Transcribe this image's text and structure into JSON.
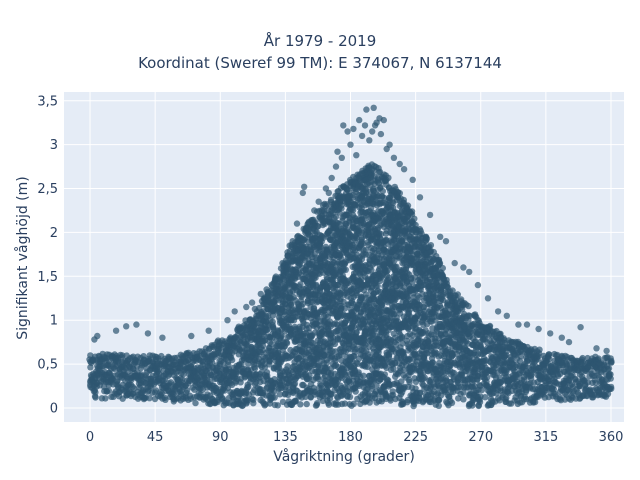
{
  "chart_data": {
    "type": "scatter",
    "title_line1": "År 1979 - 2019",
    "title_line2": "Koordinat (Sweref 99 TM): E 374067, N 6137144",
    "xlabel": "Vågriktning (grader)",
    "ylabel": "Signifikant våghöjd (m)",
    "xlim": [
      -18,
      369
    ],
    "ylim": [
      -0.16,
      3.6
    ],
    "xticks": [
      0,
      45,
      90,
      135,
      180,
      225,
      270,
      315,
      360
    ],
    "xtick_labels": [
      "0",
      "45",
      "90",
      "135",
      "180",
      "225",
      "270",
      "315",
      "360"
    ],
    "yticks": [
      0,
      0.5,
      1,
      1.5,
      2,
      2.5,
      3,
      3.5
    ],
    "ytick_labels": [
      "0",
      "0,5",
      "1",
      "1,5",
      "2",
      "2,5",
      "3",
      "3,5"
    ],
    "grid": true,
    "legend": "none",
    "marker_color": "#2e5670",
    "plot_background": "#e5ecf6",
    "envelope": {
      "x": [
        0,
        10,
        30,
        45,
        60,
        75,
        90,
        105,
        120,
        130,
        140,
        150,
        160,
        170,
        180,
        190,
        195,
        200,
        210,
        220,
        230,
        240,
        250,
        260,
        270,
        280,
        290,
        300,
        315,
        330,
        345,
        360
      ],
      "upper": [
        0.6,
        0.62,
        0.6,
        0.6,
        0.62,
        0.66,
        0.78,
        0.95,
        1.25,
        1.55,
        1.9,
        2.1,
        2.3,
        2.45,
        2.6,
        2.75,
        2.8,
        2.75,
        2.55,
        2.3,
        2.0,
        1.75,
        1.4,
        1.2,
        1.0,
        0.9,
        0.8,
        0.72,
        0.65,
        0.6,
        0.58,
        0.6
      ],
      "lower": [
        0.12,
        0.1,
        0.1,
        0.09,
        0.07,
        0.05,
        0.03,
        0.02,
        0.02,
        0.02,
        0.02,
        0.02,
        0.02,
        0.02,
        0.02,
        0.02,
        0.02,
        0.02,
        0.02,
        0.02,
        0.02,
        0.02,
        0.02,
        0.02,
        0.02,
        0.03,
        0.04,
        0.05,
        0.07,
        0.08,
        0.1,
        0.12
      ]
    },
    "outliers": [
      [
        3,
        0.78
      ],
      [
        5,
        0.82
      ],
      [
        18,
        0.88
      ],
      [
        25,
        0.93
      ],
      [
        32,
        0.95
      ],
      [
        40,
        0.85
      ],
      [
        50,
        0.8
      ],
      [
        70,
        0.82
      ],
      [
        82,
        0.88
      ],
      [
        95,
        1.0
      ],
      [
        100,
        1.1
      ],
      [
        108,
        1.15
      ],
      [
        112,
        1.2
      ],
      [
        118,
        1.3
      ],
      [
        122,
        1.35
      ],
      [
        128,
        1.45
      ],
      [
        133,
        1.65
      ],
      [
        138,
        1.85
      ],
      [
        143,
        2.1
      ],
      [
        147,
        2.45
      ],
      [
        148,
        2.52
      ],
      [
        155,
        2.25
      ],
      [
        158,
        2.35
      ],
      [
        163,
        2.5
      ],
      [
        165,
        2.45
      ],
      [
        167,
        2.62
      ],
      [
        170,
        2.75
      ],
      [
        171,
        2.92
      ],
      [
        174,
        2.85
      ],
      [
        175,
        3.22
      ],
      [
        178,
        3.15
      ],
      [
        180,
        3.0
      ],
      [
        182,
        3.18
      ],
      [
        184,
        2.88
      ],
      [
        186,
        3.28
      ],
      [
        188,
        3.1
      ],
      [
        190,
        3.22
      ],
      [
        191,
        3.4
      ],
      [
        193,
        3.05
      ],
      [
        195,
        3.15
      ],
      [
        196,
        3.42
      ],
      [
        197,
        3.22
      ],
      [
        198,
        3.25
      ],
      [
        200,
        3.3
      ],
      [
        201,
        3.12
      ],
      [
        203,
        3.28
      ],
      [
        205,
        2.95
      ],
      [
        207,
        3.0
      ],
      [
        210,
        2.85
      ],
      [
        214,
        2.78
      ],
      [
        217,
        2.72
      ],
      [
        223,
        2.6
      ],
      [
        228,
        2.4
      ],
      [
        235,
        2.2
      ],
      [
        242,
        1.95
      ],
      [
        246,
        1.9
      ],
      [
        252,
        1.65
      ],
      [
        258,
        1.6
      ],
      [
        262,
        1.55
      ],
      [
        268,
        1.4
      ],
      [
        275,
        1.25
      ],
      [
        282,
        1.1
      ],
      [
        288,
        1.05
      ],
      [
        296,
        0.95
      ],
      [
        302,
        0.95
      ],
      [
        310,
        0.9
      ],
      [
        318,
        0.85
      ],
      [
        326,
        0.8
      ],
      [
        331,
        0.75
      ],
      [
        339,
        0.92
      ],
      [
        350,
        0.68
      ],
      [
        357,
        0.65
      ]
    ]
  }
}
